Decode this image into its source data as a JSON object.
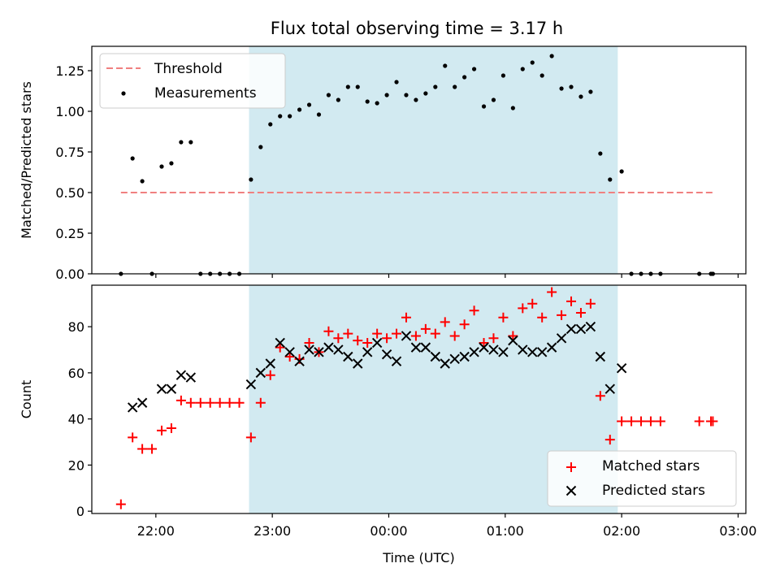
{
  "title": "Flux total observing time = 3.17 h",
  "shade_color": "#add8e6",
  "threshold_color": "#f08080",
  "chart_data": [
    {
      "type": "scatter",
      "ylabel": "Matched/Predicted stars",
      "xlim": [
        "2023-01-01T21:27",
        "2023-01-02T03:04"
      ],
      "ylim": [
        0,
        1.4
      ],
      "yticks": [
        0.0,
        0.25,
        0.5,
        0.75,
        1.0,
        1.25
      ],
      "ytick_labels": [
        "0.00",
        "0.25",
        "0.50",
        "0.75",
        "1.00",
        "1.25"
      ],
      "legend_position": "top-left",
      "shaded_span": [
        "2023-01-01T22:48",
        "2023-01-02T01:58"
      ],
      "series": [
        {
          "name": "Threshold",
          "style": "dashed-line",
          "color": "#f08080",
          "x": [
            "2023-01-01T21:42",
            "2023-01-02T02:48"
          ],
          "y": [
            0.5,
            0.5
          ]
        },
        {
          "name": "Measurements",
          "style": "dot",
          "color": "#000000",
          "x": [
            "2023-01-01T21:42",
            "2023-01-01T21:48",
            "2023-01-01T21:53",
            "2023-01-01T21:58",
            "2023-01-01T22:03",
            "2023-01-01T22:08",
            "2023-01-01T22:13",
            "2023-01-01T22:18",
            "2023-01-01T22:23",
            "2023-01-01T22:28",
            "2023-01-01T22:33",
            "2023-01-01T22:38",
            "2023-01-01T22:43",
            "2023-01-01T22:49",
            "2023-01-01T22:54",
            "2023-01-01T22:59",
            "2023-01-01T23:04",
            "2023-01-01T23:09",
            "2023-01-01T23:14",
            "2023-01-01T23:19",
            "2023-01-01T23:24",
            "2023-01-01T23:29",
            "2023-01-01T23:34",
            "2023-01-01T23:39",
            "2023-01-01T23:44",
            "2023-01-01T23:49",
            "2023-01-01T23:54",
            "2023-01-01T23:59",
            "2023-01-02T00:04",
            "2023-01-02T00:09",
            "2023-01-02T00:14",
            "2023-01-02T00:19",
            "2023-01-02T00:24",
            "2023-01-02T00:29",
            "2023-01-02T00:34",
            "2023-01-02T00:39",
            "2023-01-02T00:44",
            "2023-01-02T00:49",
            "2023-01-02T00:54",
            "2023-01-02T00:59",
            "2023-01-02T01:04",
            "2023-01-02T01:09",
            "2023-01-02T01:14",
            "2023-01-02T01:19",
            "2023-01-02T01:24",
            "2023-01-02T01:29",
            "2023-01-02T01:34",
            "2023-01-02T01:39",
            "2023-01-02T01:44",
            "2023-01-02T01:49",
            "2023-01-02T01:54",
            "2023-01-02T02:00",
            "2023-01-02T02:05",
            "2023-01-02T02:10",
            "2023-01-02T02:15",
            "2023-01-02T02:20",
            "2023-01-02T02:40",
            "2023-01-02T02:46",
            "2023-01-02T02:47"
          ],
          "y": [
            0.0,
            0.71,
            0.57,
            0.0,
            0.66,
            0.68,
            0.81,
            0.81,
            0.0,
            0.0,
            0.0,
            0.0,
            0.0,
            0.58,
            0.78,
            0.92,
            0.97,
            0.97,
            1.01,
            1.04,
            0.98,
            1.1,
            1.07,
            1.15,
            1.15,
            1.06,
            1.05,
            1.1,
            1.18,
            1.1,
            1.07,
            1.11,
            1.15,
            1.28,
            1.15,
            1.21,
            1.26,
            1.03,
            1.07,
            1.22,
            1.02,
            1.26,
            1.3,
            1.22,
            1.34,
            1.14,
            1.15,
            1.09,
            1.12,
            0.74,
            0.58,
            0.63,
            0.0,
            0.0,
            0.0,
            0.0,
            0.0,
            0.0,
            0.0
          ]
        }
      ]
    },
    {
      "type": "scatter",
      "xlabel": "Time (UTC)",
      "ylabel": "Count",
      "xlim": [
        "2023-01-01T21:27",
        "2023-01-02T03:04"
      ],
      "ylim": [
        -1,
        98
      ],
      "yticks": [
        0,
        20,
        40,
        60,
        80
      ],
      "ytick_labels": [
        "0",
        "20",
        "40",
        "60",
        "80"
      ],
      "xticks": [
        "2023-01-01T22:00",
        "2023-01-01T23:00",
        "2023-01-02T00:00",
        "2023-01-02T01:00",
        "2023-01-02T02:00",
        "2023-01-02T03:00"
      ],
      "xtick_labels": [
        "22:00",
        "23:00",
        "00:00",
        "01:00",
        "02:00",
        "03:00"
      ],
      "legend_position": "bottom-right",
      "shaded_span": [
        "2023-01-01T22:48",
        "2023-01-02T01:58"
      ],
      "series": [
        {
          "name": "Matched stars",
          "marker": "plus",
          "color": "#ff0000",
          "x": [
            "2023-01-01T21:42",
            "2023-01-01T21:48",
            "2023-01-01T21:53",
            "2023-01-01T21:58",
            "2023-01-01T22:03",
            "2023-01-01T22:08",
            "2023-01-01T22:13",
            "2023-01-01T22:18",
            "2023-01-01T22:23",
            "2023-01-01T22:28",
            "2023-01-01T22:33",
            "2023-01-01T22:38",
            "2023-01-01T22:43",
            "2023-01-01T22:49",
            "2023-01-01T22:54",
            "2023-01-01T22:59",
            "2023-01-01T23:04",
            "2023-01-01T23:09",
            "2023-01-01T23:14",
            "2023-01-01T23:19",
            "2023-01-01T23:24",
            "2023-01-01T23:29",
            "2023-01-01T23:34",
            "2023-01-01T23:39",
            "2023-01-01T23:44",
            "2023-01-01T23:49",
            "2023-01-01T23:54",
            "2023-01-01T23:59",
            "2023-01-02T00:04",
            "2023-01-02T00:09",
            "2023-01-02T00:14",
            "2023-01-02T00:19",
            "2023-01-02T00:24",
            "2023-01-02T00:29",
            "2023-01-02T00:34",
            "2023-01-02T00:39",
            "2023-01-02T00:44",
            "2023-01-02T00:49",
            "2023-01-02T00:54",
            "2023-01-02T00:59",
            "2023-01-02T01:04",
            "2023-01-02T01:09",
            "2023-01-02T01:14",
            "2023-01-02T01:19",
            "2023-01-02T01:24",
            "2023-01-02T01:29",
            "2023-01-02T01:34",
            "2023-01-02T01:39",
            "2023-01-02T01:44",
            "2023-01-02T01:49",
            "2023-01-02T01:54",
            "2023-01-02T02:00",
            "2023-01-02T02:05",
            "2023-01-02T02:10",
            "2023-01-02T02:15",
            "2023-01-02T02:20",
            "2023-01-02T02:40",
            "2023-01-02T02:46",
            "2023-01-02T02:47"
          ],
          "y": [
            3,
            32,
            27,
            27,
            35,
            36,
            48,
            47,
            47,
            47,
            47,
            47,
            47,
            32,
            47,
            59,
            71,
            67,
            66,
            73,
            69,
            78,
            75,
            77,
            74,
            73,
            77,
            75,
            77,
            84,
            76,
            79,
            77,
            82,
            76,
            81,
            87,
            73,
            75,
            84,
            76,
            88,
            90,
            84,
            95,
            85,
            91,
            86,
            90,
            50,
            31,
            39,
            39,
            39,
            39,
            39,
            39,
            39,
            39
          ]
        },
        {
          "name": "Predicted stars",
          "marker": "cross",
          "color": "#000000",
          "x": [
            "2023-01-01T21:48",
            "2023-01-01T21:53",
            "2023-01-01T22:03",
            "2023-01-01T22:08",
            "2023-01-01T22:13",
            "2023-01-01T22:18",
            "2023-01-01T22:49",
            "2023-01-01T22:54",
            "2023-01-01T22:59",
            "2023-01-01T23:04",
            "2023-01-01T23:09",
            "2023-01-01T23:14",
            "2023-01-01T23:19",
            "2023-01-01T23:24",
            "2023-01-01T23:29",
            "2023-01-01T23:34",
            "2023-01-01T23:39",
            "2023-01-01T23:44",
            "2023-01-01T23:49",
            "2023-01-01T23:54",
            "2023-01-01T23:59",
            "2023-01-02T00:04",
            "2023-01-02T00:09",
            "2023-01-02T00:14",
            "2023-01-02T00:19",
            "2023-01-02T00:24",
            "2023-01-02T00:29",
            "2023-01-02T00:34",
            "2023-01-02T00:39",
            "2023-01-02T00:44",
            "2023-01-02T00:49",
            "2023-01-02T00:54",
            "2023-01-02T00:59",
            "2023-01-02T01:04",
            "2023-01-02T01:09",
            "2023-01-02T01:14",
            "2023-01-02T01:19",
            "2023-01-02T01:24",
            "2023-01-02T01:29",
            "2023-01-02T01:34",
            "2023-01-02T01:39",
            "2023-01-02T01:44",
            "2023-01-02T01:49",
            "2023-01-02T01:54",
            "2023-01-02T02:00"
          ],
          "y": [
            45,
            47,
            53,
            53,
            59,
            58,
            55,
            60,
            64,
            73,
            69,
            65,
            70,
            69,
            71,
            70,
            67,
            64,
            69,
            73,
            68,
            65,
            76,
            71,
            71,
            67,
            64,
            66,
            67,
            69,
            71,
            70,
            69,
            74,
            70,
            69,
            69,
            71,
            75,
            79,
            79,
            80,
            67,
            53,
            62
          ]
        }
      ]
    }
  ]
}
